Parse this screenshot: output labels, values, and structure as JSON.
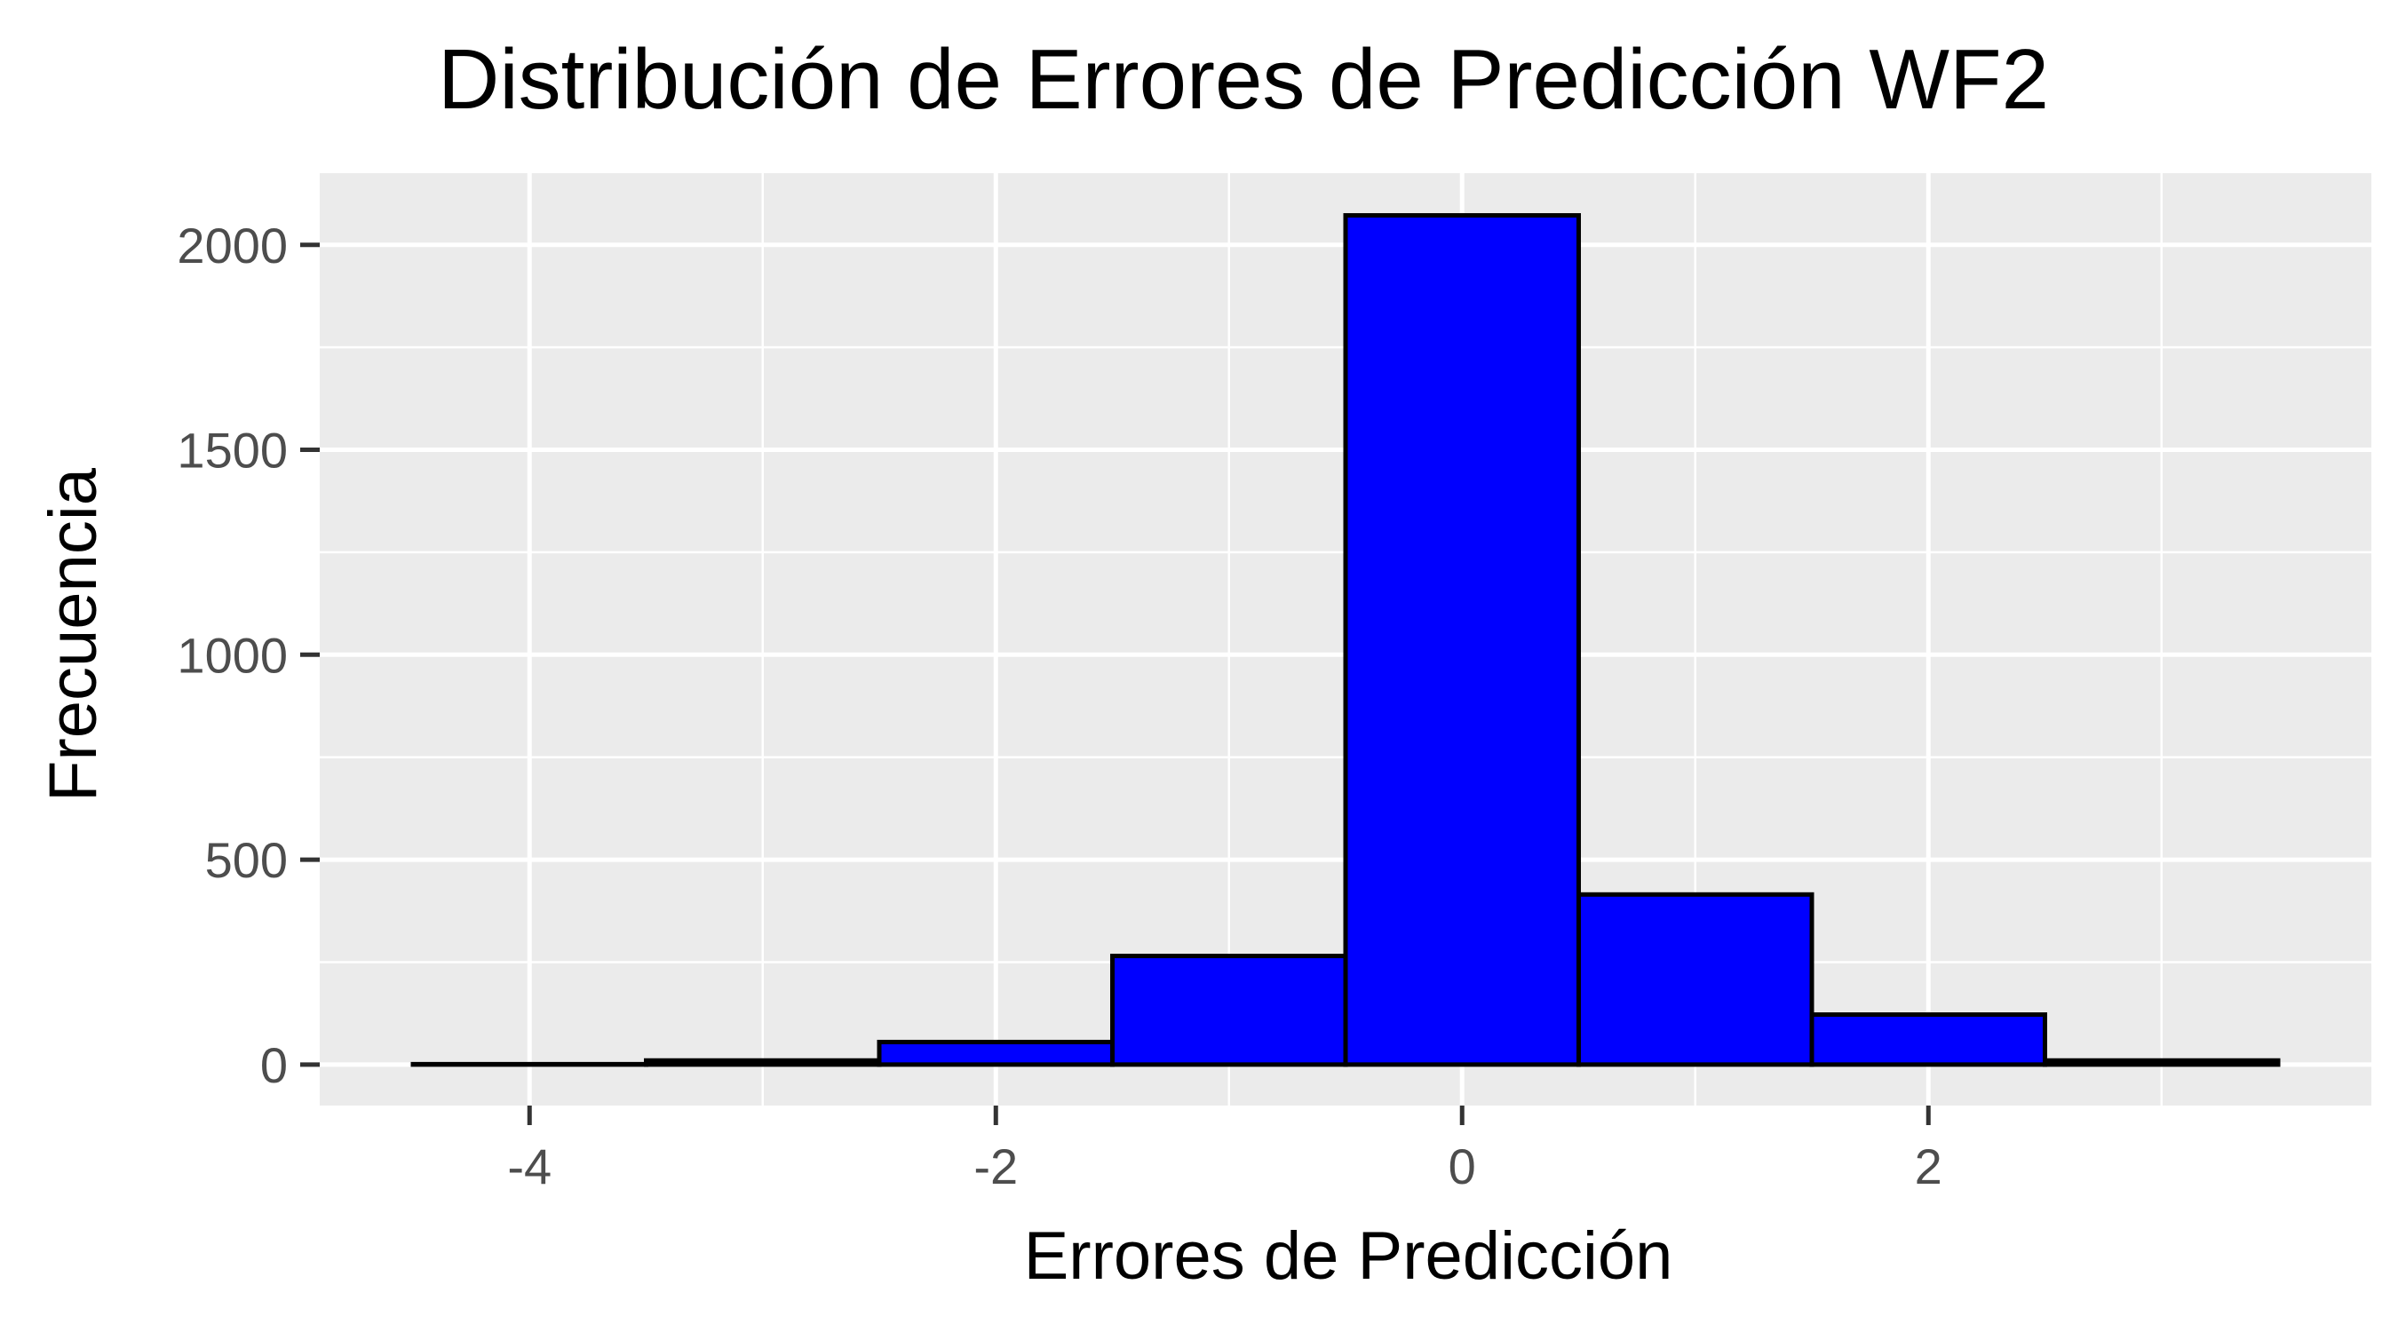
{
  "chart_data": {
    "type": "bar",
    "title": "Distribución de Errores de Predicción WF2",
    "xlabel": "Errores de Predicción",
    "ylabel": "Frecuencia",
    "bins": [
      {
        "x_start": -4.5,
        "x_end": -3.5,
        "count": 1
      },
      {
        "x_start": -3.5,
        "x_end": -2.5,
        "count": 10
      },
      {
        "x_start": -2.5,
        "x_end": -1.5,
        "count": 55
      },
      {
        "x_start": -1.5,
        "x_end": -0.5,
        "count": 265
      },
      {
        "x_start": -0.5,
        "x_end": 0.5,
        "count": 2072
      },
      {
        "x_start": 0.5,
        "x_end": 1.5,
        "count": 415
      },
      {
        "x_start": 1.5,
        "x_end": 2.5,
        "count": 122
      },
      {
        "x_start": 2.5,
        "x_end": 3.5,
        "count": 10
      }
    ],
    "xlim": [
      -4.9,
      3.9
    ],
    "ylim": [
      -100,
      2175
    ],
    "x_ticks": [
      -4,
      -2,
      0,
      2
    ],
    "x_tick_labels": [
      "-4",
      "-2",
      "0",
      "2"
    ],
    "y_ticks": [
      0,
      500,
      1000,
      1500,
      2000
    ],
    "y_tick_labels": [
      "0",
      "500",
      "1000",
      "1500",
      "2000"
    ],
    "grid": true,
    "colors": {
      "bar_fill": "#0000ff",
      "bar_stroke": "#000000",
      "panel_background": "#ebebeb",
      "grid_line": "#ffffff",
      "tick_text": "#4d4d4d"
    }
  }
}
